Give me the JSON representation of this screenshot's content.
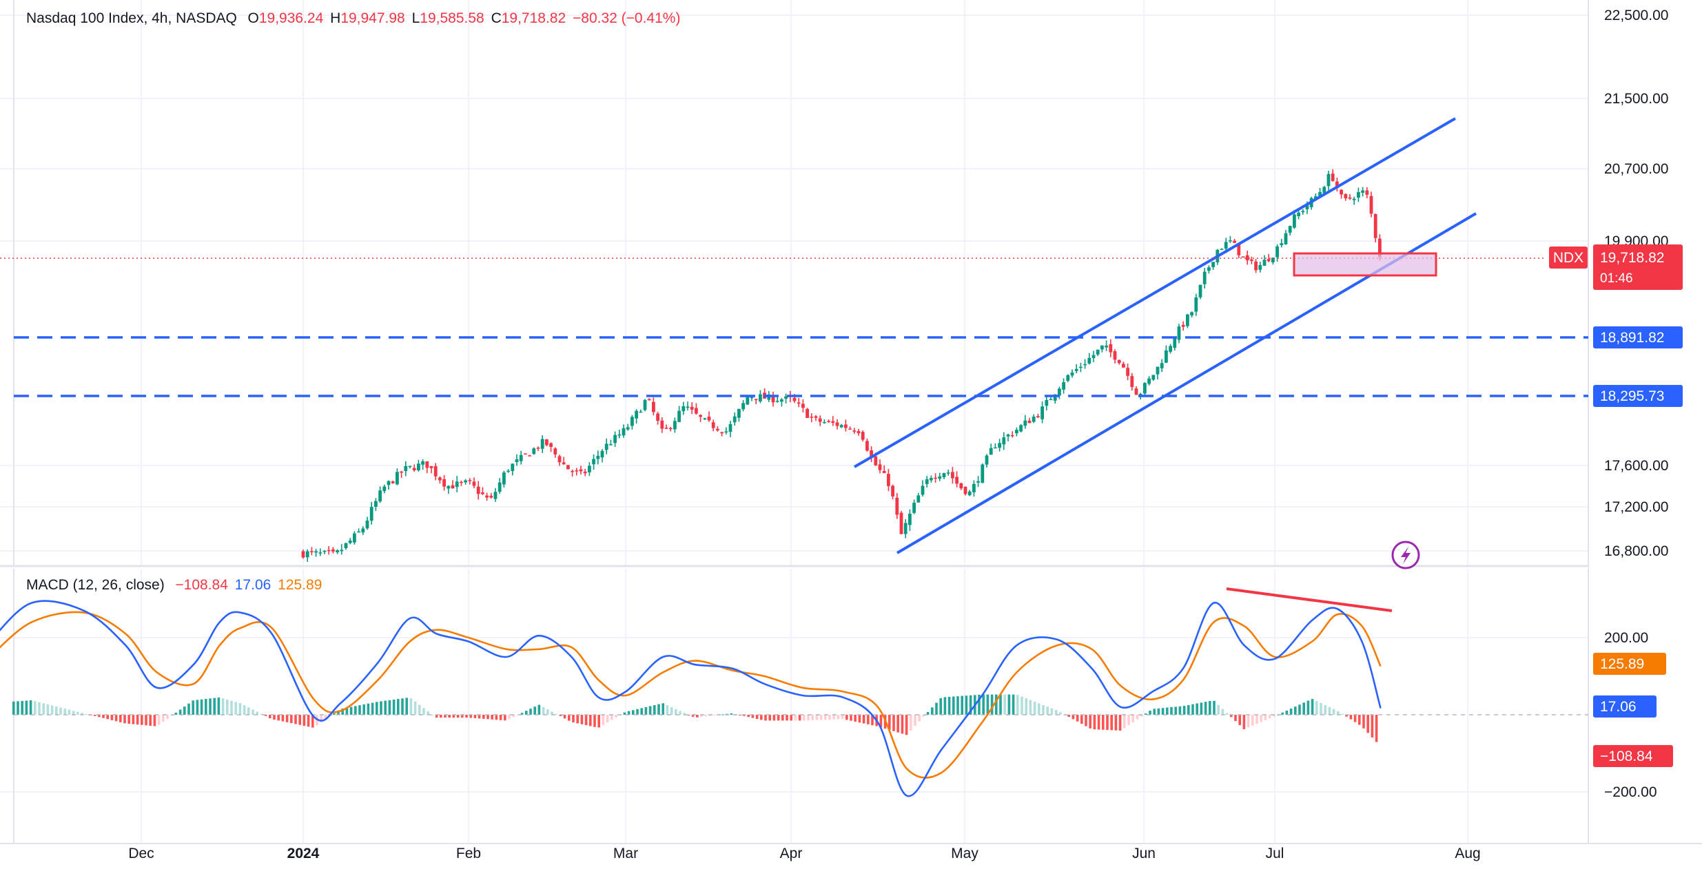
{
  "colors": {
    "up": "#089981",
    "down": "#f23645",
    "channel": "#2962ff",
    "macd_line": "#2962ff",
    "signal_line": "#f57c00",
    "hist_up_strong": "#26a69a",
    "hist_up_weak": "#b2dfdb",
    "hist_down_strong": "#ff5252",
    "hist_down_weak": "#ffcdd2",
    "grid": "#f0f3fa",
    "axis_text": "#131722",
    "zone_fill": "#e1bee7",
    "zone_stroke": "#f23645",
    "divergence": "#f23645"
  },
  "legend": {
    "symbol": "Nasdaq 100 Index, 4h, NASDAQ",
    "o_label": "O",
    "o_value": "19,936.24",
    "h_label": "H",
    "h_value": "19,947.98",
    "l_label": "L",
    "l_value": "19,585.58",
    "c_label": "C",
    "c_value": "19,718.82",
    "change": "−80.32 (−0.41%)"
  },
  "macd_legend": {
    "title": "MACD (12, 26, close)",
    "hist": "−108.84",
    "macd": "17.06",
    "signal": "125.89"
  },
  "badges": {
    "ticker": "NDX",
    "price": "19,718.82",
    "countdown": "01:46",
    "level1": "18,891.82",
    "level2": "18,295.73",
    "signal": "125.89",
    "macd": "17.06",
    "hist": "−108.84"
  },
  "chart_data": [
    {
      "type": "candlestick",
      "title": "Nasdaq 100 Index, 4h, NASDAQ",
      "timeframe": "4h",
      "x_ticks": [
        "Dec",
        "2024",
        "Feb",
        "Mar",
        "Apr",
        "May",
        "Jun",
        "Jul",
        "Aug"
      ],
      "y_ticks": [
        "22,500.00",
        "21,500.00",
        "20,700.00",
        "19,900.00",
        "17,600.00",
        "17,200.00",
        "16,800.00"
      ],
      "y_tick_values": [
        22500,
        21500,
        20700,
        19900,
        17600,
        17200,
        16800
      ],
      "last_price": 19718.82,
      "horizontal_levels": [
        18891.82,
        18295.73
      ],
      "close_path": [
        [
          "2024-01-01",
          16780
        ],
        [
          "2024-01-07",
          16760
        ],
        [
          "2024-01-12",
          16990
        ],
        [
          "2024-01-16",
          17380
        ],
        [
          "2024-01-20",
          17560
        ],
        [
          "2024-01-24",
          17620
        ],
        [
          "2024-01-28",
          17400
        ],
        [
          "2024-02-01",
          17430
        ],
        [
          "2024-02-05",
          17250
        ],
        [
          "2024-02-08",
          17560
        ],
        [
          "2024-02-12",
          17720
        ],
        [
          "2024-02-15",
          17840
        ],
        [
          "2024-02-19",
          17580
        ],
        [
          "2024-02-22",
          17500
        ],
        [
          "2024-02-26",
          17780
        ],
        [
          "2024-03-01",
          17960
        ],
        [
          "2024-03-05",
          18270
        ],
        [
          "2024-03-08",
          17910
        ],
        [
          "2024-03-12",
          18190
        ],
        [
          "2024-03-16",
          18030
        ],
        [
          "2024-03-20",
          17940
        ],
        [
          "2024-03-24",
          18300
        ],
        [
          "2024-03-28",
          18270
        ],
        [
          "2024-04-01",
          18260
        ],
        [
          "2024-04-05",
          18050
        ],
        [
          "2024-04-09",
          18010
        ],
        [
          "2024-04-13",
          17950
        ],
        [
          "2024-04-15",
          17650
        ],
        [
          "2024-04-18",
          17420
        ],
        [
          "2024-04-20",
          16940
        ],
        [
          "2024-04-23",
          17300
        ],
        [
          "2024-04-25",
          17500
        ],
        [
          "2024-04-28",
          17550
        ],
        [
          "2024-04-30",
          17400
        ],
        [
          "2024-05-02",
          17330
        ],
        [
          "2024-05-06",
          17800
        ],
        [
          "2024-05-10",
          17960
        ],
        [
          "2024-05-14",
          18130
        ],
        [
          "2024-05-18",
          18450
        ],
        [
          "2024-05-22",
          18650
        ],
        [
          "2024-05-25",
          18800
        ],
        [
          "2024-05-28",
          18650
        ],
        [
          "2024-05-31",
          18300
        ],
        [
          "2024-06-04",
          18570
        ],
        [
          "2024-06-08",
          18900
        ],
        [
          "2024-06-12",
          19160
        ],
        [
          "2024-06-15",
          19550
        ],
        [
          "2024-06-18",
          19820
        ],
        [
          "2024-06-21",
          19900
        ],
        [
          "2024-06-24",
          19700
        ],
        [
          "2024-06-27",
          19620
        ],
        [
          "2024-07-01",
          19780
        ],
        [
          "2024-07-04",
          20150
        ],
        [
          "2024-07-08",
          20420
        ],
        [
          "2024-07-10",
          20650
        ],
        [
          "2024-07-12",
          20330
        ],
        [
          "2024-07-15",
          20450
        ],
        [
          "2024-07-16",
          20380
        ],
        [
          "2024-07-17",
          20010
        ],
        [
          "2024-07-18",
          19718.82
        ]
      ]
    },
    {
      "type": "line",
      "title": "MACD (12, 26, close)",
      "y_ticks": [
        "200.00",
        "−200.00"
      ],
      "y_tick_values": [
        200,
        -200
      ],
      "series": [
        {
          "name": "MACD",
          "last": 17.06,
          "x": [
            "2023-11-02",
            "2023-11-10",
            "2023-11-20",
            "2023-11-28",
            "2023-12-04",
            "2023-12-11",
            "2023-12-16",
            "2023-12-20",
            "2023-12-26",
            "2024-01-03",
            "2024-01-08",
            "2024-01-15",
            "2024-01-21",
            "2024-01-26",
            "2024-02-01",
            "2024-02-08",
            "2024-02-14",
            "2024-02-20",
            "2024-02-25",
            "2024-03-01",
            "2024-03-08",
            "2024-03-14",
            "2024-03-21",
            "2024-03-27",
            "2024-04-03",
            "2024-04-10",
            "2024-04-16",
            "2024-04-21",
            "2024-04-27",
            "2024-05-04",
            "2024-05-10",
            "2024-05-17",
            "2024-05-23",
            "2024-05-28",
            "2024-06-03",
            "2024-06-10",
            "2024-06-17",
            "2024-06-24",
            "2024-07-01",
            "2024-07-07",
            "2024-07-11",
            "2024-07-15",
            "2024-07-18"
          ],
          "values": [
            190,
            290,
            270,
            180,
            70,
            130,
            240,
            265,
            210,
            -5,
            30,
            135,
            250,
            210,
            190,
            150,
            205,
            150,
            45,
            60,
            150,
            130,
            120,
            80,
            50,
            45,
            -20,
            -210,
            -90,
            50,
            180,
            195,
            120,
            20,
            60,
            120,
            290,
            180,
            145,
            245,
            275,
            190,
            17
          ]
        },
        {
          "name": "Signal",
          "last": 125.89,
          "x": [
            "2023-11-02",
            "2023-11-10",
            "2023-11-20",
            "2023-11-28",
            "2023-12-04",
            "2023-12-11",
            "2023-12-16",
            "2023-12-20",
            "2023-12-26",
            "2024-01-03",
            "2024-01-08",
            "2024-01-15",
            "2024-01-21",
            "2024-01-26",
            "2024-02-01",
            "2024-02-08",
            "2024-02-14",
            "2024-02-20",
            "2024-02-25",
            "2024-03-01",
            "2024-03-08",
            "2024-03-14",
            "2024-03-21",
            "2024-03-27",
            "2024-04-03",
            "2024-04-10",
            "2024-04-16",
            "2024-04-21",
            "2024-04-27",
            "2024-05-04",
            "2024-05-10",
            "2024-05-17",
            "2024-05-23",
            "2024-05-28",
            "2024-06-03",
            "2024-06-10",
            "2024-06-17",
            "2024-06-24",
            "2024-07-01",
            "2024-07-07",
            "2024-07-11",
            "2024-07-15",
            "2024-07-18"
          ],
          "values": [
            150,
            240,
            265,
            210,
            110,
            80,
            180,
            225,
            225,
            40,
            10,
            90,
            190,
            220,
            200,
            170,
            170,
            175,
            90,
            50,
            110,
            140,
            115,
            100,
            70,
            60,
            20,
            -140,
            -150,
            -20,
            110,
            180,
            170,
            75,
            40,
            90,
            240,
            230,
            150,
            190,
            260,
            230,
            125.89
          ]
        }
      ],
      "histogram_last": -108.84
    }
  ]
}
